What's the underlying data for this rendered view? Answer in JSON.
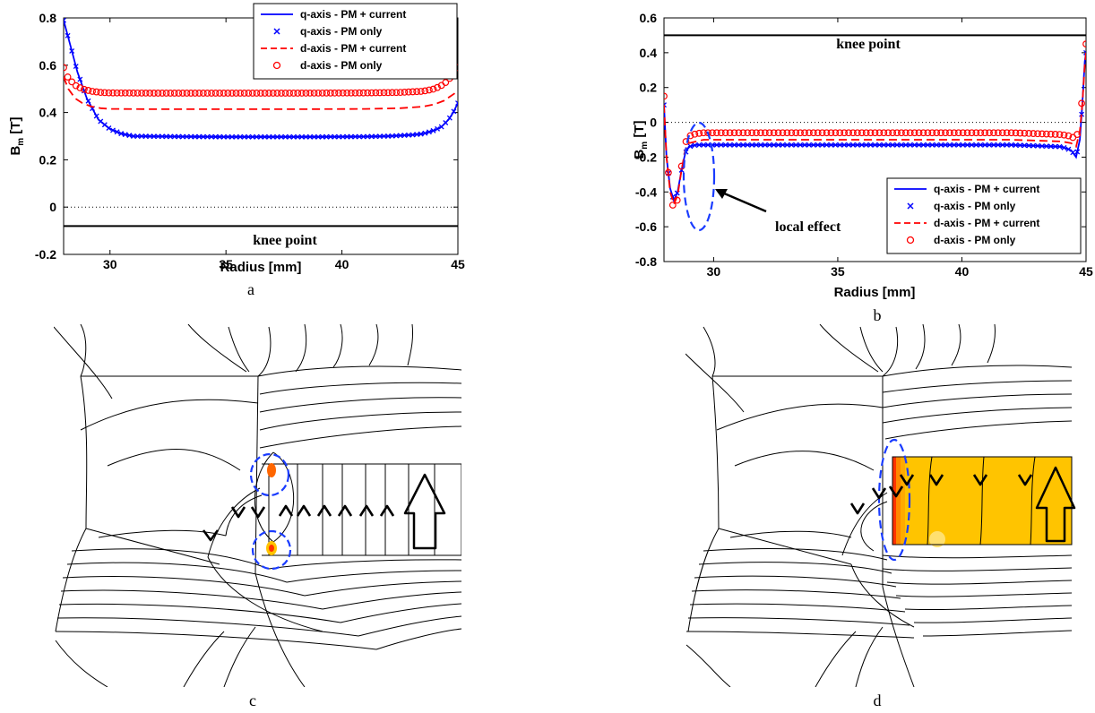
{
  "chart_data": [
    {
      "type": "line",
      "panel_label": "a",
      "xlabel": "Radius [mm]",
      "ylabel": "B",
      "ylabel_sub": "m",
      "ylabel_unit": " [T]",
      "xlim": [
        28,
        45
      ],
      "ylim": [
        -0.2,
        0.8
      ],
      "xticks": [
        30,
        35,
        40,
        45
      ],
      "yticks": [
        -0.2,
        0,
        0.2,
        0.4,
        0.6,
        0.8
      ],
      "zero_line": true,
      "legend_position": "top-right",
      "knee_point": {
        "y": -0.08,
        "label": "knee point"
      },
      "series": [
        {
          "name": "q-axis - PM + current",
          "color": "#0000ff",
          "style": "solid",
          "x": [
            28.0,
            28.3,
            28.6,
            29.0,
            29.5,
            30.0,
            30.5,
            31,
            33,
            35,
            37,
            39,
            41,
            42,
            43,
            43.5,
            44,
            44.3,
            44.6,
            44.8,
            45.0
          ],
          "y": [
            0.79,
            0.68,
            0.57,
            0.46,
            0.37,
            0.33,
            0.31,
            0.3,
            0.298,
            0.297,
            0.297,
            0.297,
            0.298,
            0.3,
            0.305,
            0.31,
            0.325,
            0.34,
            0.37,
            0.4,
            0.44
          ]
        },
        {
          "name": "q-axis - PM only",
          "color": "#0000ff",
          "style": "x-marker",
          "x": [
            28.0,
            28.3,
            28.6,
            29.0,
            29.5,
            30.0,
            30.5,
            31,
            33,
            35,
            37,
            39,
            41,
            42,
            43,
            43.5,
            44,
            44.3,
            44.6,
            44.8,
            45.0
          ],
          "y": [
            0.79,
            0.68,
            0.57,
            0.46,
            0.37,
            0.33,
            0.31,
            0.3,
            0.298,
            0.297,
            0.297,
            0.297,
            0.298,
            0.3,
            0.305,
            0.31,
            0.325,
            0.34,
            0.37,
            0.4,
            0.44
          ]
        },
        {
          "name": "d-axis - PM + current",
          "color": "#ff0000",
          "style": "dashed",
          "x": [
            28.0,
            28.2,
            28.5,
            28.8,
            29.2,
            29.6,
            30,
            32,
            35,
            38,
            41,
            42.5,
            43.5,
            44,
            44.4,
            44.7,
            45.0
          ],
          "y": [
            0.55,
            0.5,
            0.46,
            0.44,
            0.425,
            0.418,
            0.415,
            0.414,
            0.414,
            0.414,
            0.415,
            0.418,
            0.425,
            0.435,
            0.45,
            0.47,
            0.49
          ]
        },
        {
          "name": "d-axis - PM only",
          "color": "#ff0000",
          "style": "circle-marker",
          "x": [
            28.0,
            28.2,
            28.5,
            28.8,
            29.2,
            29.6,
            30,
            32,
            35,
            38,
            41,
            42.5,
            43.5,
            44,
            44.4,
            44.7,
            45.0
          ],
          "y": [
            0.59,
            0.545,
            0.515,
            0.5,
            0.49,
            0.485,
            0.483,
            0.482,
            0.482,
            0.482,
            0.483,
            0.485,
            0.49,
            0.5,
            0.52,
            0.55,
            0.59
          ]
        }
      ]
    },
    {
      "type": "line",
      "panel_label": "b",
      "xlabel": "Radius [mm]",
      "ylabel": "B",
      "ylabel_sub": "m",
      "ylabel_unit": " [T]",
      "xlim": [
        28,
        45
      ],
      "ylim": [
        -0.8,
        0.6
      ],
      "xticks": [
        30,
        35,
        40,
        45
      ],
      "yticks": [
        -0.8,
        -0.6,
        -0.4,
        -0.2,
        0,
        0.2,
        0.4,
        0.6
      ],
      "zero_line": true,
      "legend_position": "bottom-right",
      "knee_point": {
        "y": 0.5,
        "label": "knee point"
      },
      "annotation": {
        "text": "local effect",
        "x": 28.4,
        "y": -0.42
      },
      "series": [
        {
          "name": "q-axis - PM + current",
          "color": "#0000ff",
          "style": "solid",
          "x": [
            28.0,
            28.1,
            28.25,
            28.4,
            28.55,
            28.7,
            28.85,
            29.0,
            29.3,
            29.6,
            30,
            33,
            36,
            39,
            42,
            44,
            44.4,
            44.6,
            44.75,
            44.85,
            44.95,
            45.0
          ],
          "y": [
            0.1,
            -0.2,
            -0.38,
            -0.45,
            -0.4,
            -0.28,
            -0.18,
            -0.14,
            -0.13,
            -0.13,
            -0.13,
            -0.13,
            -0.13,
            -0.13,
            -0.13,
            -0.14,
            -0.16,
            -0.2,
            -0.1,
            0.1,
            0.35,
            0.4
          ]
        },
        {
          "name": "q-axis - PM only",
          "color": "#0000ff",
          "style": "x-marker",
          "x": [
            28.0,
            28.1,
            28.25,
            28.4,
            28.55,
            28.7,
            28.85,
            29.0,
            29.3,
            29.6,
            30,
            33,
            36,
            39,
            42,
            44,
            44.4,
            44.6,
            44.75,
            44.85,
            44.95,
            45.0
          ],
          "y": [
            0.1,
            -0.2,
            -0.38,
            -0.45,
            -0.4,
            -0.28,
            -0.18,
            -0.14,
            -0.13,
            -0.13,
            -0.13,
            -0.13,
            -0.13,
            -0.13,
            -0.13,
            -0.14,
            -0.16,
            -0.2,
            -0.1,
            0.1,
            0.35,
            0.4
          ]
        },
        {
          "name": "d-axis - PM + current",
          "color": "#ff0000",
          "style": "dashed",
          "x": [
            28.0,
            28.1,
            28.25,
            28.4,
            28.55,
            28.7,
            28.85,
            29.0,
            29.3,
            29.6,
            30,
            33,
            36,
            39,
            42,
            44,
            44.4,
            44.6,
            44.75,
            44.85,
            44.95,
            45.0
          ],
          "y": [
            0.1,
            -0.2,
            -0.4,
            -0.47,
            -0.42,
            -0.28,
            -0.16,
            -0.12,
            -0.11,
            -0.1,
            -0.1,
            -0.1,
            -0.1,
            -0.1,
            -0.1,
            -0.11,
            -0.12,
            -0.14,
            -0.05,
            0.1,
            0.33,
            0.4
          ]
        },
        {
          "name": "d-axis - PM only",
          "color": "#ff0000",
          "style": "circle-marker",
          "x": [
            28.0,
            28.1,
            28.25,
            28.4,
            28.55,
            28.7,
            28.85,
            29.0,
            29.3,
            29.6,
            30,
            33,
            36,
            39,
            42,
            44,
            44.4,
            44.6,
            44.75,
            44.85,
            44.95,
            45.0
          ],
          "y": [
            0.15,
            -0.15,
            -0.42,
            -0.5,
            -0.44,
            -0.26,
            -0.12,
            -0.08,
            -0.065,
            -0.06,
            -0.06,
            -0.06,
            -0.06,
            -0.06,
            -0.06,
            -0.07,
            -0.08,
            -0.1,
            0.0,
            0.15,
            0.4,
            0.45
          ]
        }
      ]
    }
  ],
  "figures": {
    "c": {
      "label": "c",
      "field_colors": [
        "#ffc400",
        "#ff3300"
      ]
    },
    "d": {
      "label": "d",
      "field_colors": [
        "#ffc400",
        "#ff3300"
      ]
    }
  },
  "colors": {
    "q_axis": "#0000ff",
    "d_axis": "#ff0000",
    "highlight": "#1a3cff",
    "magnet": "#ffc400"
  }
}
